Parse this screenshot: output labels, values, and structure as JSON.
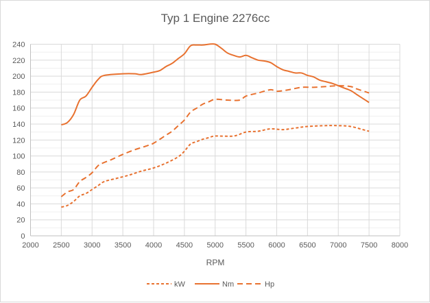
{
  "chart_data": {
    "type": "line",
    "title": "Typ 1 Engine 2276cc",
    "xlabel": "RPM",
    "ylabel": "",
    "xlim": [
      2000,
      8000
    ],
    "ylim": [
      0,
      240
    ],
    "xticks": [
      2000,
      2500,
      3000,
      3500,
      4000,
      4500,
      5000,
      5500,
      6000,
      6500,
      7000,
      7500,
      8000
    ],
    "yticks": [
      0,
      20,
      40,
      60,
      80,
      100,
      120,
      140,
      160,
      180,
      200,
      220,
      240
    ],
    "grid": true,
    "legend": "bottom",
    "color": "#E8712F",
    "series": [
      {
        "name": "kW",
        "dash": "short-dash",
        "x": [
          2500,
          2600,
          2700,
          2800,
          2900,
          3000,
          3100,
          3200,
          3400,
          3600,
          3800,
          4000,
          4200,
          4400,
          4500,
          4600,
          4700,
          4800,
          4900,
          5000,
          5300,
          5500,
          5700,
          5900,
          6100,
          6300,
          6500,
          6800,
          7000,
          7200,
          7400,
          7500
        ],
        "y": [
          36,
          38,
          43,
          50,
          53,
          58,
          63,
          68,
          72,
          76,
          81,
          85,
          91,
          99,
          106,
          115,
          118,
          121,
          123,
          125,
          125,
          130,
          131,
          134,
          133,
          135,
          137,
          138,
          138,
          137,
          133,
          131
        ]
      },
      {
        "name": "Nm",
        "dash": "solid",
        "x": [
          2500,
          2600,
          2700,
          2800,
          2900,
          3000,
          3100,
          3200,
          3500,
          3700,
          3800,
          4000,
          4100,
          4200,
          4300,
          4400,
          4500,
          4600,
          4700,
          4800,
          4900,
          5000,
          5100,
          5200,
          5300,
          5400,
          5500,
          5600,
          5700,
          5800,
          5900,
          6000,
          6100,
          6200,
          6300,
          6400,
          6500,
          6600,
          6700,
          6800,
          6900,
          7000,
          7100,
          7200,
          7300,
          7400,
          7500
        ],
        "y": [
          139,
          142,
          152,
          170,
          175,
          186,
          196,
          201,
          203,
          203,
          202,
          205,
          207,
          212,
          216,
          222,
          228,
          238,
          239,
          239,
          240,
          240,
          235,
          229,
          226,
          224,
          226,
          223,
          220,
          219,
          217,
          212,
          208,
          206,
          204,
          204,
          201,
          199,
          195,
          193,
          191,
          188,
          185,
          182,
          177,
          172,
          167
        ]
      },
      {
        "name": "Hp",
        "dash": "long-dash",
        "x": [
          2500,
          2600,
          2700,
          2800,
          2900,
          3000,
          3100,
          3200,
          3300,
          3500,
          3700,
          3900,
          4000,
          4200,
          4300,
          4400,
          4500,
          4600,
          4700,
          4800,
          4900,
          5000,
          5200,
          5400,
          5500,
          5700,
          5900,
          6000,
          6200,
          6400,
          6600,
          6800,
          7000,
          7200,
          7300,
          7500
        ],
        "y": [
          49,
          55,
          58,
          68,
          73,
          79,
          88,
          92,
          95,
          102,
          108,
          113,
          116,
          126,
          131,
          138,
          145,
          155,
          160,
          165,
          168,
          171,
          170,
          170,
          175,
          179,
          183,
          181,
          183,
          186,
          186,
          187,
          188,
          187,
          184,
          179
        ]
      }
    ]
  }
}
